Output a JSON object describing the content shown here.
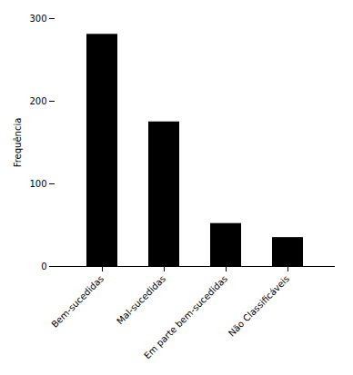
{
  "chart_data": {
    "type": "bar",
    "categories": [
      "Bem-sucedidas",
      "Mal-sucedidas",
      "Em parte bem-sucedidas",
      "Não Classificáveis"
    ],
    "values": [
      281,
      175,
      52,
      35
    ],
    "ylabel": "Frequência",
    "ylim": [
      0,
      300
    ],
    "yticks": [
      0,
      100,
      200,
      300
    ],
    "grid": false
  }
}
